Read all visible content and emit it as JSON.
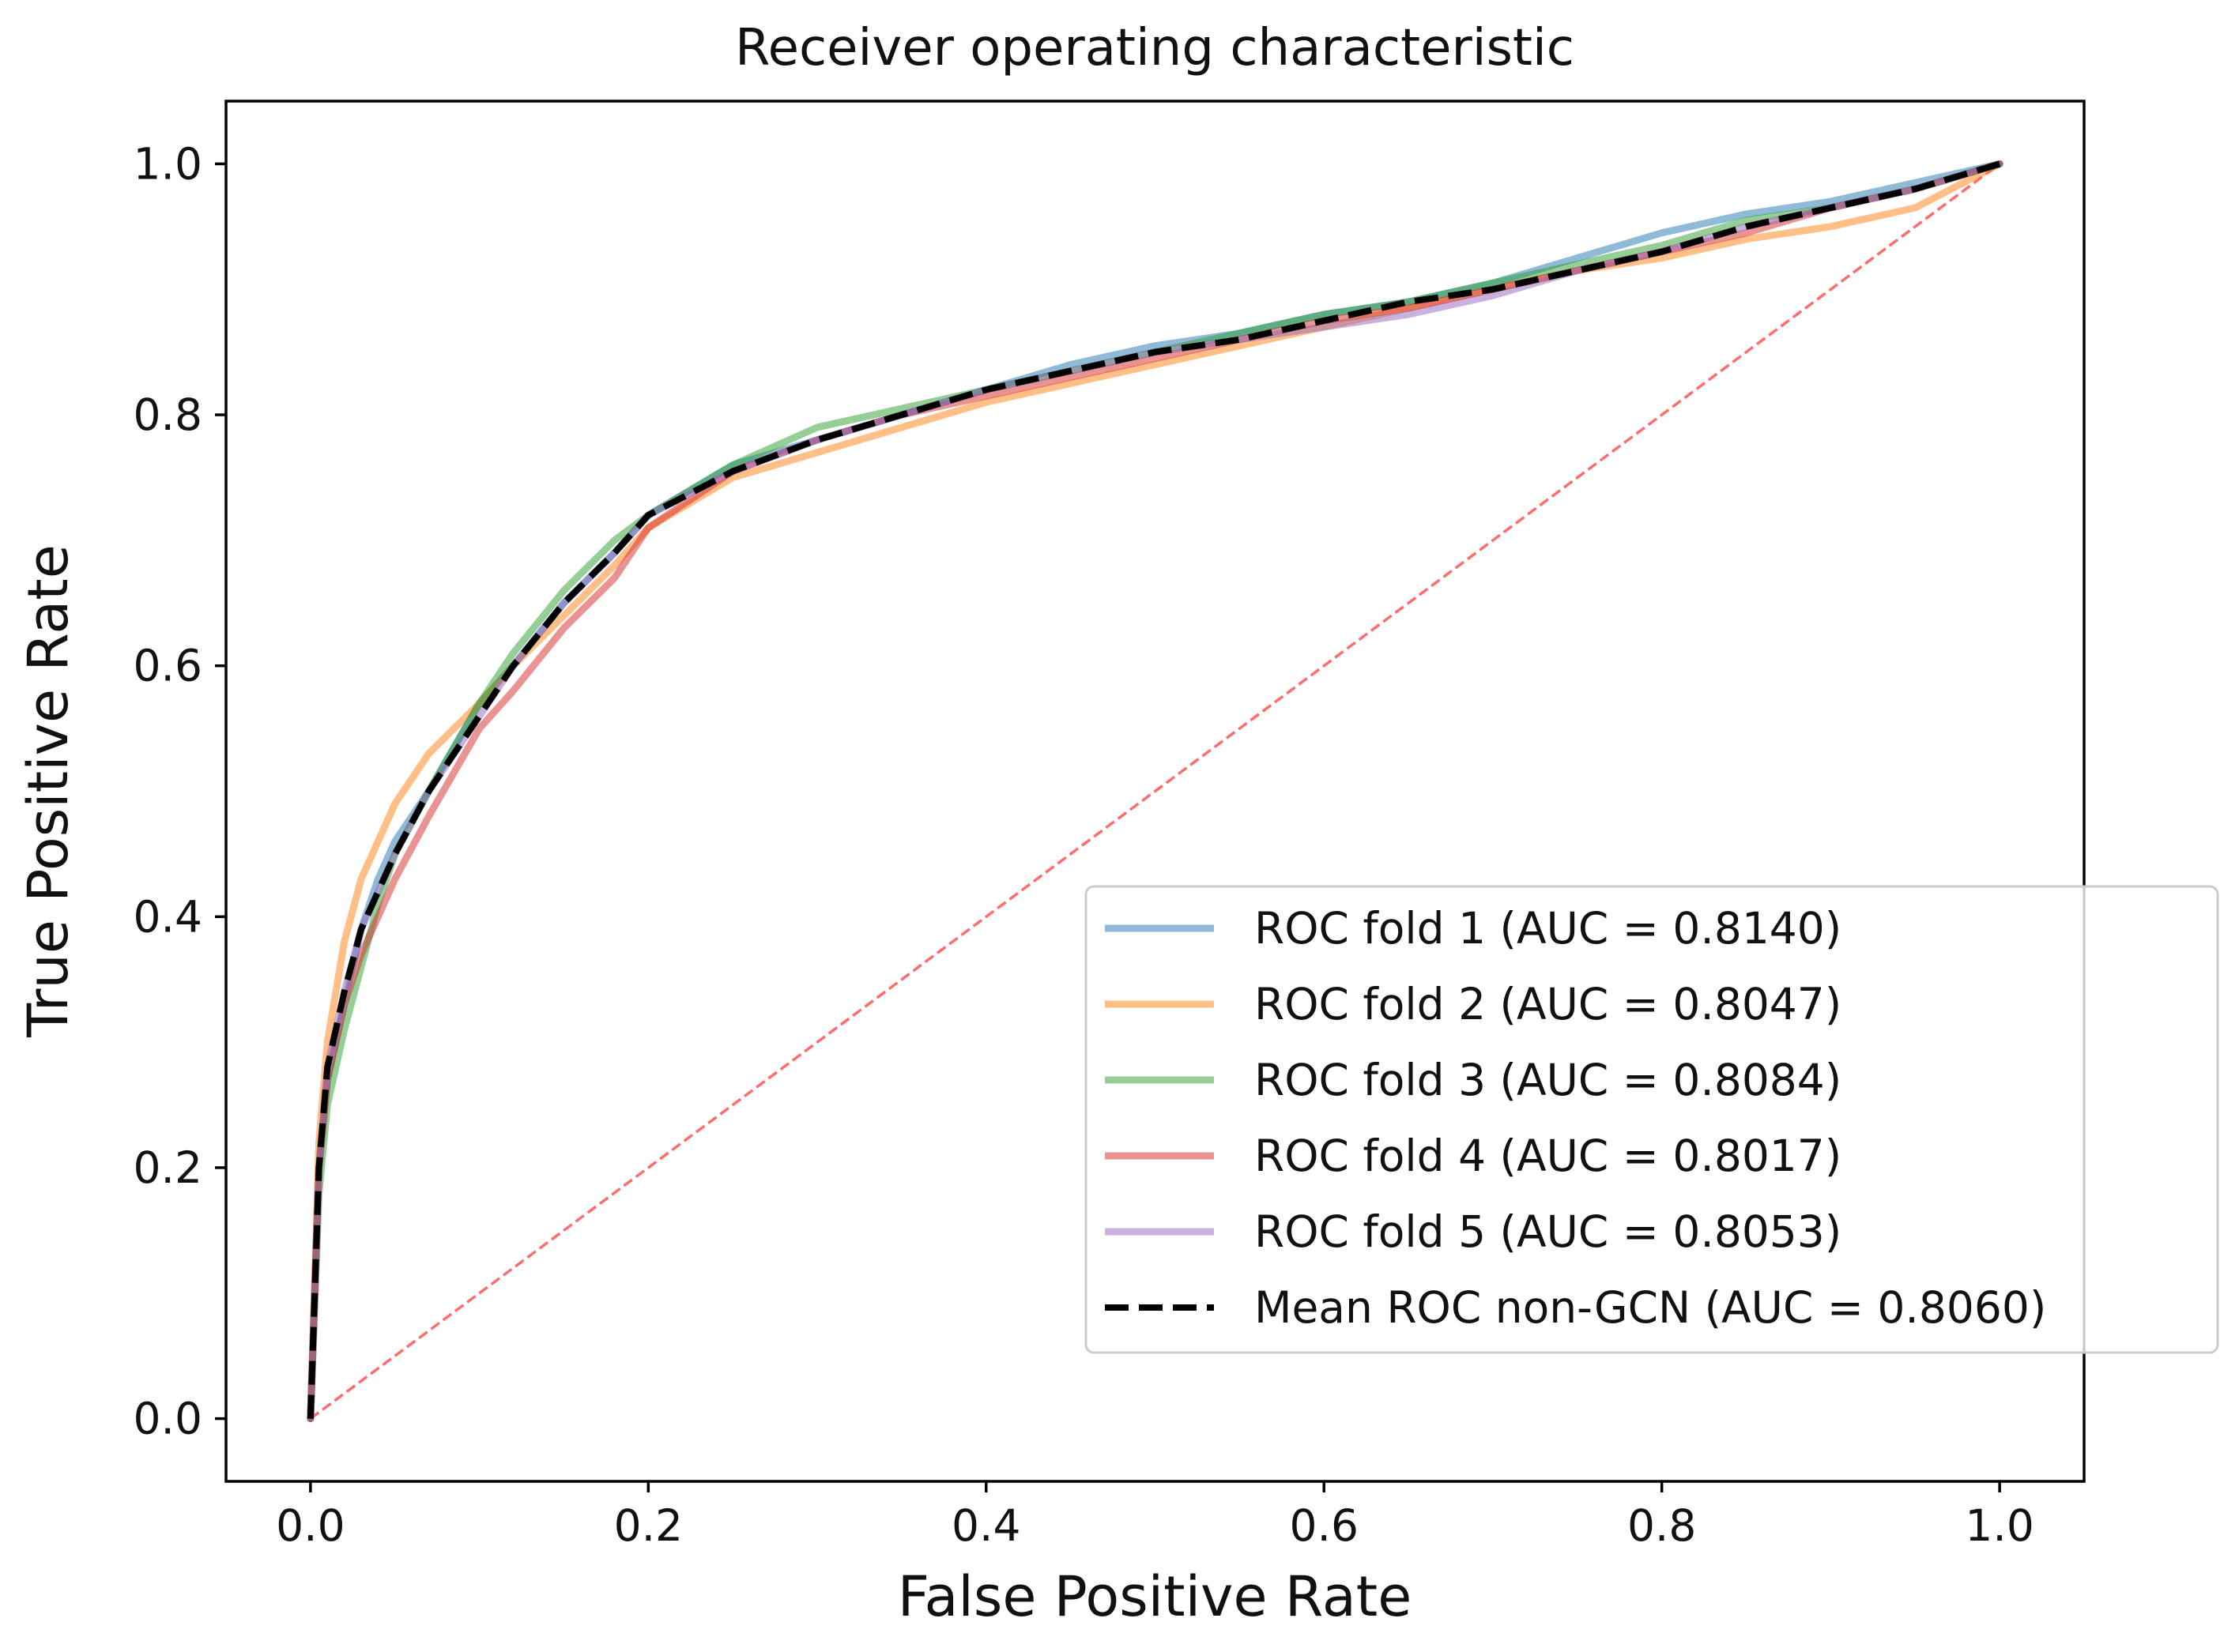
{
  "chart_data": {
    "type": "line",
    "title": "Receiver operating characteristic",
    "xlabel": "False Positive Rate",
    "ylabel": "True Positive Rate",
    "xlim": [
      -0.05,
      1.05
    ],
    "ylim": [
      -0.05,
      1.05
    ],
    "grid": false,
    "legend_position": "lower-right",
    "x_ticks": [
      {
        "value": 0.0,
        "label": "0.0"
      },
      {
        "value": 0.2,
        "label": "0.2"
      },
      {
        "value": 0.4,
        "label": "0.4"
      },
      {
        "value": 0.6,
        "label": "0.6"
      },
      {
        "value": 0.8,
        "label": "0.8"
      },
      {
        "value": 1.0,
        "label": "1.0"
      }
    ],
    "y_ticks": [
      {
        "value": 0.0,
        "label": "0.0"
      },
      {
        "value": 0.2,
        "label": "0.2"
      },
      {
        "value": 0.4,
        "label": "0.4"
      },
      {
        "value": 0.6,
        "label": "0.6"
      },
      {
        "value": 0.8,
        "label": "0.8"
      },
      {
        "value": 1.0,
        "label": "1.0"
      }
    ],
    "series": [
      {
        "name": "ROC fold 1 (AUC = 0.8140)",
        "color": "#1f77b4",
        "style": "solid",
        "opacity": 0.5,
        "points": [
          [
            0,
            0
          ],
          [
            0.005,
            0.2
          ],
          [
            0.01,
            0.27
          ],
          [
            0.02,
            0.33
          ],
          [
            0.03,
            0.39
          ],
          [
            0.04,
            0.43
          ],
          [
            0.05,
            0.46
          ],
          [
            0.07,
            0.5
          ],
          [
            0.1,
            0.57
          ],
          [
            0.12,
            0.6
          ],
          [
            0.15,
            0.65
          ],
          [
            0.18,
            0.69
          ],
          [
            0.2,
            0.72
          ],
          [
            0.25,
            0.76
          ],
          [
            0.3,
            0.78
          ],
          [
            0.35,
            0.8
          ],
          [
            0.4,
            0.82
          ],
          [
            0.45,
            0.84
          ],
          [
            0.5,
            0.855
          ],
          [
            0.55,
            0.865
          ],
          [
            0.6,
            0.88
          ],
          [
            0.65,
            0.89
          ],
          [
            0.7,
            0.905
          ],
          [
            0.75,
            0.925
          ],
          [
            0.8,
            0.945
          ],
          [
            0.85,
            0.96
          ],
          [
            0.9,
            0.97
          ],
          [
            0.95,
            0.985
          ],
          [
            1,
            1
          ]
        ]
      },
      {
        "name": "ROC fold 2 (AUC = 0.8047)",
        "color": "#ff7f0e",
        "style": "solid",
        "opacity": 0.5,
        "points": [
          [
            0,
            0
          ],
          [
            0.005,
            0.22
          ],
          [
            0.01,
            0.3
          ],
          [
            0.02,
            0.38
          ],
          [
            0.03,
            0.43
          ],
          [
            0.04,
            0.46
          ],
          [
            0.05,
            0.49
          ],
          [
            0.07,
            0.53
          ],
          [
            0.1,
            0.57
          ],
          [
            0.12,
            0.6
          ],
          [
            0.15,
            0.64
          ],
          [
            0.18,
            0.68
          ],
          [
            0.2,
            0.71
          ],
          [
            0.25,
            0.75
          ],
          [
            0.3,
            0.77
          ],
          [
            0.35,
            0.79
          ],
          [
            0.4,
            0.81
          ],
          [
            0.45,
            0.825
          ],
          [
            0.5,
            0.84
          ],
          [
            0.55,
            0.855
          ],
          [
            0.6,
            0.87
          ],
          [
            0.65,
            0.885
          ],
          [
            0.7,
            0.9
          ],
          [
            0.75,
            0.915
          ],
          [
            0.8,
            0.925
          ],
          [
            0.85,
            0.94
          ],
          [
            0.9,
            0.95
          ],
          [
            0.95,
            0.965
          ],
          [
            1,
            1
          ]
        ]
      },
      {
        "name": "ROC fold 3 (AUC = 0.8084)",
        "color": "#2ca02c",
        "style": "solid",
        "opacity": 0.5,
        "points": [
          [
            0,
            0
          ],
          [
            0.005,
            0.18
          ],
          [
            0.01,
            0.25
          ],
          [
            0.02,
            0.31
          ],
          [
            0.03,
            0.36
          ],
          [
            0.04,
            0.41
          ],
          [
            0.05,
            0.45
          ],
          [
            0.07,
            0.5
          ],
          [
            0.1,
            0.57
          ],
          [
            0.12,
            0.61
          ],
          [
            0.15,
            0.66
          ],
          [
            0.18,
            0.7
          ],
          [
            0.2,
            0.72
          ],
          [
            0.25,
            0.76
          ],
          [
            0.3,
            0.79
          ],
          [
            0.35,
            0.805
          ],
          [
            0.4,
            0.82
          ],
          [
            0.45,
            0.835
          ],
          [
            0.5,
            0.85
          ],
          [
            0.55,
            0.865
          ],
          [
            0.6,
            0.88
          ],
          [
            0.65,
            0.89
          ],
          [
            0.7,
            0.905
          ],
          [
            0.75,
            0.92
          ],
          [
            0.8,
            0.935
          ],
          [
            0.85,
            0.955
          ],
          [
            0.9,
            0.965
          ],
          [
            0.95,
            0.98
          ],
          [
            1,
            1
          ]
        ]
      },
      {
        "name": "ROC fold 4 (AUC = 0.8017)",
        "color": "#d62728",
        "style": "solid",
        "opacity": 0.5,
        "points": [
          [
            0,
            0
          ],
          [
            0.005,
            0.2
          ],
          [
            0.01,
            0.27
          ],
          [
            0.02,
            0.33
          ],
          [
            0.03,
            0.37
          ],
          [
            0.04,
            0.4
          ],
          [
            0.05,
            0.43
          ],
          [
            0.07,
            0.48
          ],
          [
            0.1,
            0.55
          ],
          [
            0.12,
            0.58
          ],
          [
            0.15,
            0.63
          ],
          [
            0.18,
            0.67
          ],
          [
            0.2,
            0.71
          ],
          [
            0.25,
            0.755
          ],
          [
            0.3,
            0.78
          ],
          [
            0.35,
            0.8
          ],
          [
            0.4,
            0.815
          ],
          [
            0.45,
            0.83
          ],
          [
            0.5,
            0.845
          ],
          [
            0.55,
            0.86
          ],
          [
            0.6,
            0.875
          ],
          [
            0.65,
            0.885
          ],
          [
            0.7,
            0.9
          ],
          [
            0.75,
            0.915
          ],
          [
            0.8,
            0.93
          ],
          [
            0.85,
            0.945
          ],
          [
            0.9,
            0.965
          ],
          [
            0.95,
            0.98
          ],
          [
            1,
            1
          ]
        ]
      },
      {
        "name": "ROC fold 5 (AUC = 0.8053)",
        "color": "#9467bd",
        "style": "solid",
        "opacity": 0.5,
        "points": [
          [
            0,
            0
          ],
          [
            0.005,
            0.2
          ],
          [
            0.01,
            0.28
          ],
          [
            0.02,
            0.34
          ],
          [
            0.03,
            0.39
          ],
          [
            0.04,
            0.42
          ],
          [
            0.05,
            0.45
          ],
          [
            0.07,
            0.5
          ],
          [
            0.1,
            0.56
          ],
          [
            0.12,
            0.6
          ],
          [
            0.15,
            0.65
          ],
          [
            0.18,
            0.69
          ],
          [
            0.2,
            0.72
          ],
          [
            0.25,
            0.755
          ],
          [
            0.3,
            0.78
          ],
          [
            0.35,
            0.8
          ],
          [
            0.4,
            0.82
          ],
          [
            0.45,
            0.835
          ],
          [
            0.5,
            0.85
          ],
          [
            0.55,
            0.86
          ],
          [
            0.6,
            0.87
          ],
          [
            0.65,
            0.88
          ],
          [
            0.7,
            0.895
          ],
          [
            0.75,
            0.915
          ],
          [
            0.8,
            0.93
          ],
          [
            0.85,
            0.95
          ],
          [
            0.9,
            0.965
          ],
          [
            0.95,
            0.98
          ],
          [
            1,
            1
          ]
        ]
      },
      {
        "name": "Mean ROC non-GCN (AUC = 0.8060)",
        "color": "#000000",
        "style": "dashed",
        "opacity": 1,
        "points": [
          [
            0,
            0
          ],
          [
            0.005,
            0.2
          ],
          [
            0.01,
            0.28
          ],
          [
            0.02,
            0.34
          ],
          [
            0.03,
            0.39
          ],
          [
            0.04,
            0.42
          ],
          [
            0.05,
            0.45
          ],
          [
            0.07,
            0.5
          ],
          [
            0.1,
            0.56
          ],
          [
            0.12,
            0.6
          ],
          [
            0.15,
            0.65
          ],
          [
            0.18,
            0.69
          ],
          [
            0.2,
            0.72
          ],
          [
            0.25,
            0.755
          ],
          [
            0.3,
            0.78
          ],
          [
            0.35,
            0.8
          ],
          [
            0.4,
            0.82
          ],
          [
            0.45,
            0.835
          ],
          [
            0.5,
            0.85
          ],
          [
            0.55,
            0.86
          ],
          [
            0.6,
            0.875
          ],
          [
            0.65,
            0.89
          ],
          [
            0.7,
            0.9
          ],
          [
            0.75,
            0.915
          ],
          [
            0.8,
            0.93
          ],
          [
            0.85,
            0.95
          ],
          [
            0.9,
            0.965
          ],
          [
            0.95,
            0.98
          ],
          [
            1,
            1
          ]
        ]
      }
    ],
    "reference_line": {
      "color": "#ff6e6e",
      "style": "dashed",
      "points": [
        [
          0,
          0
        ],
        [
          1,
          1
        ]
      ]
    }
  }
}
